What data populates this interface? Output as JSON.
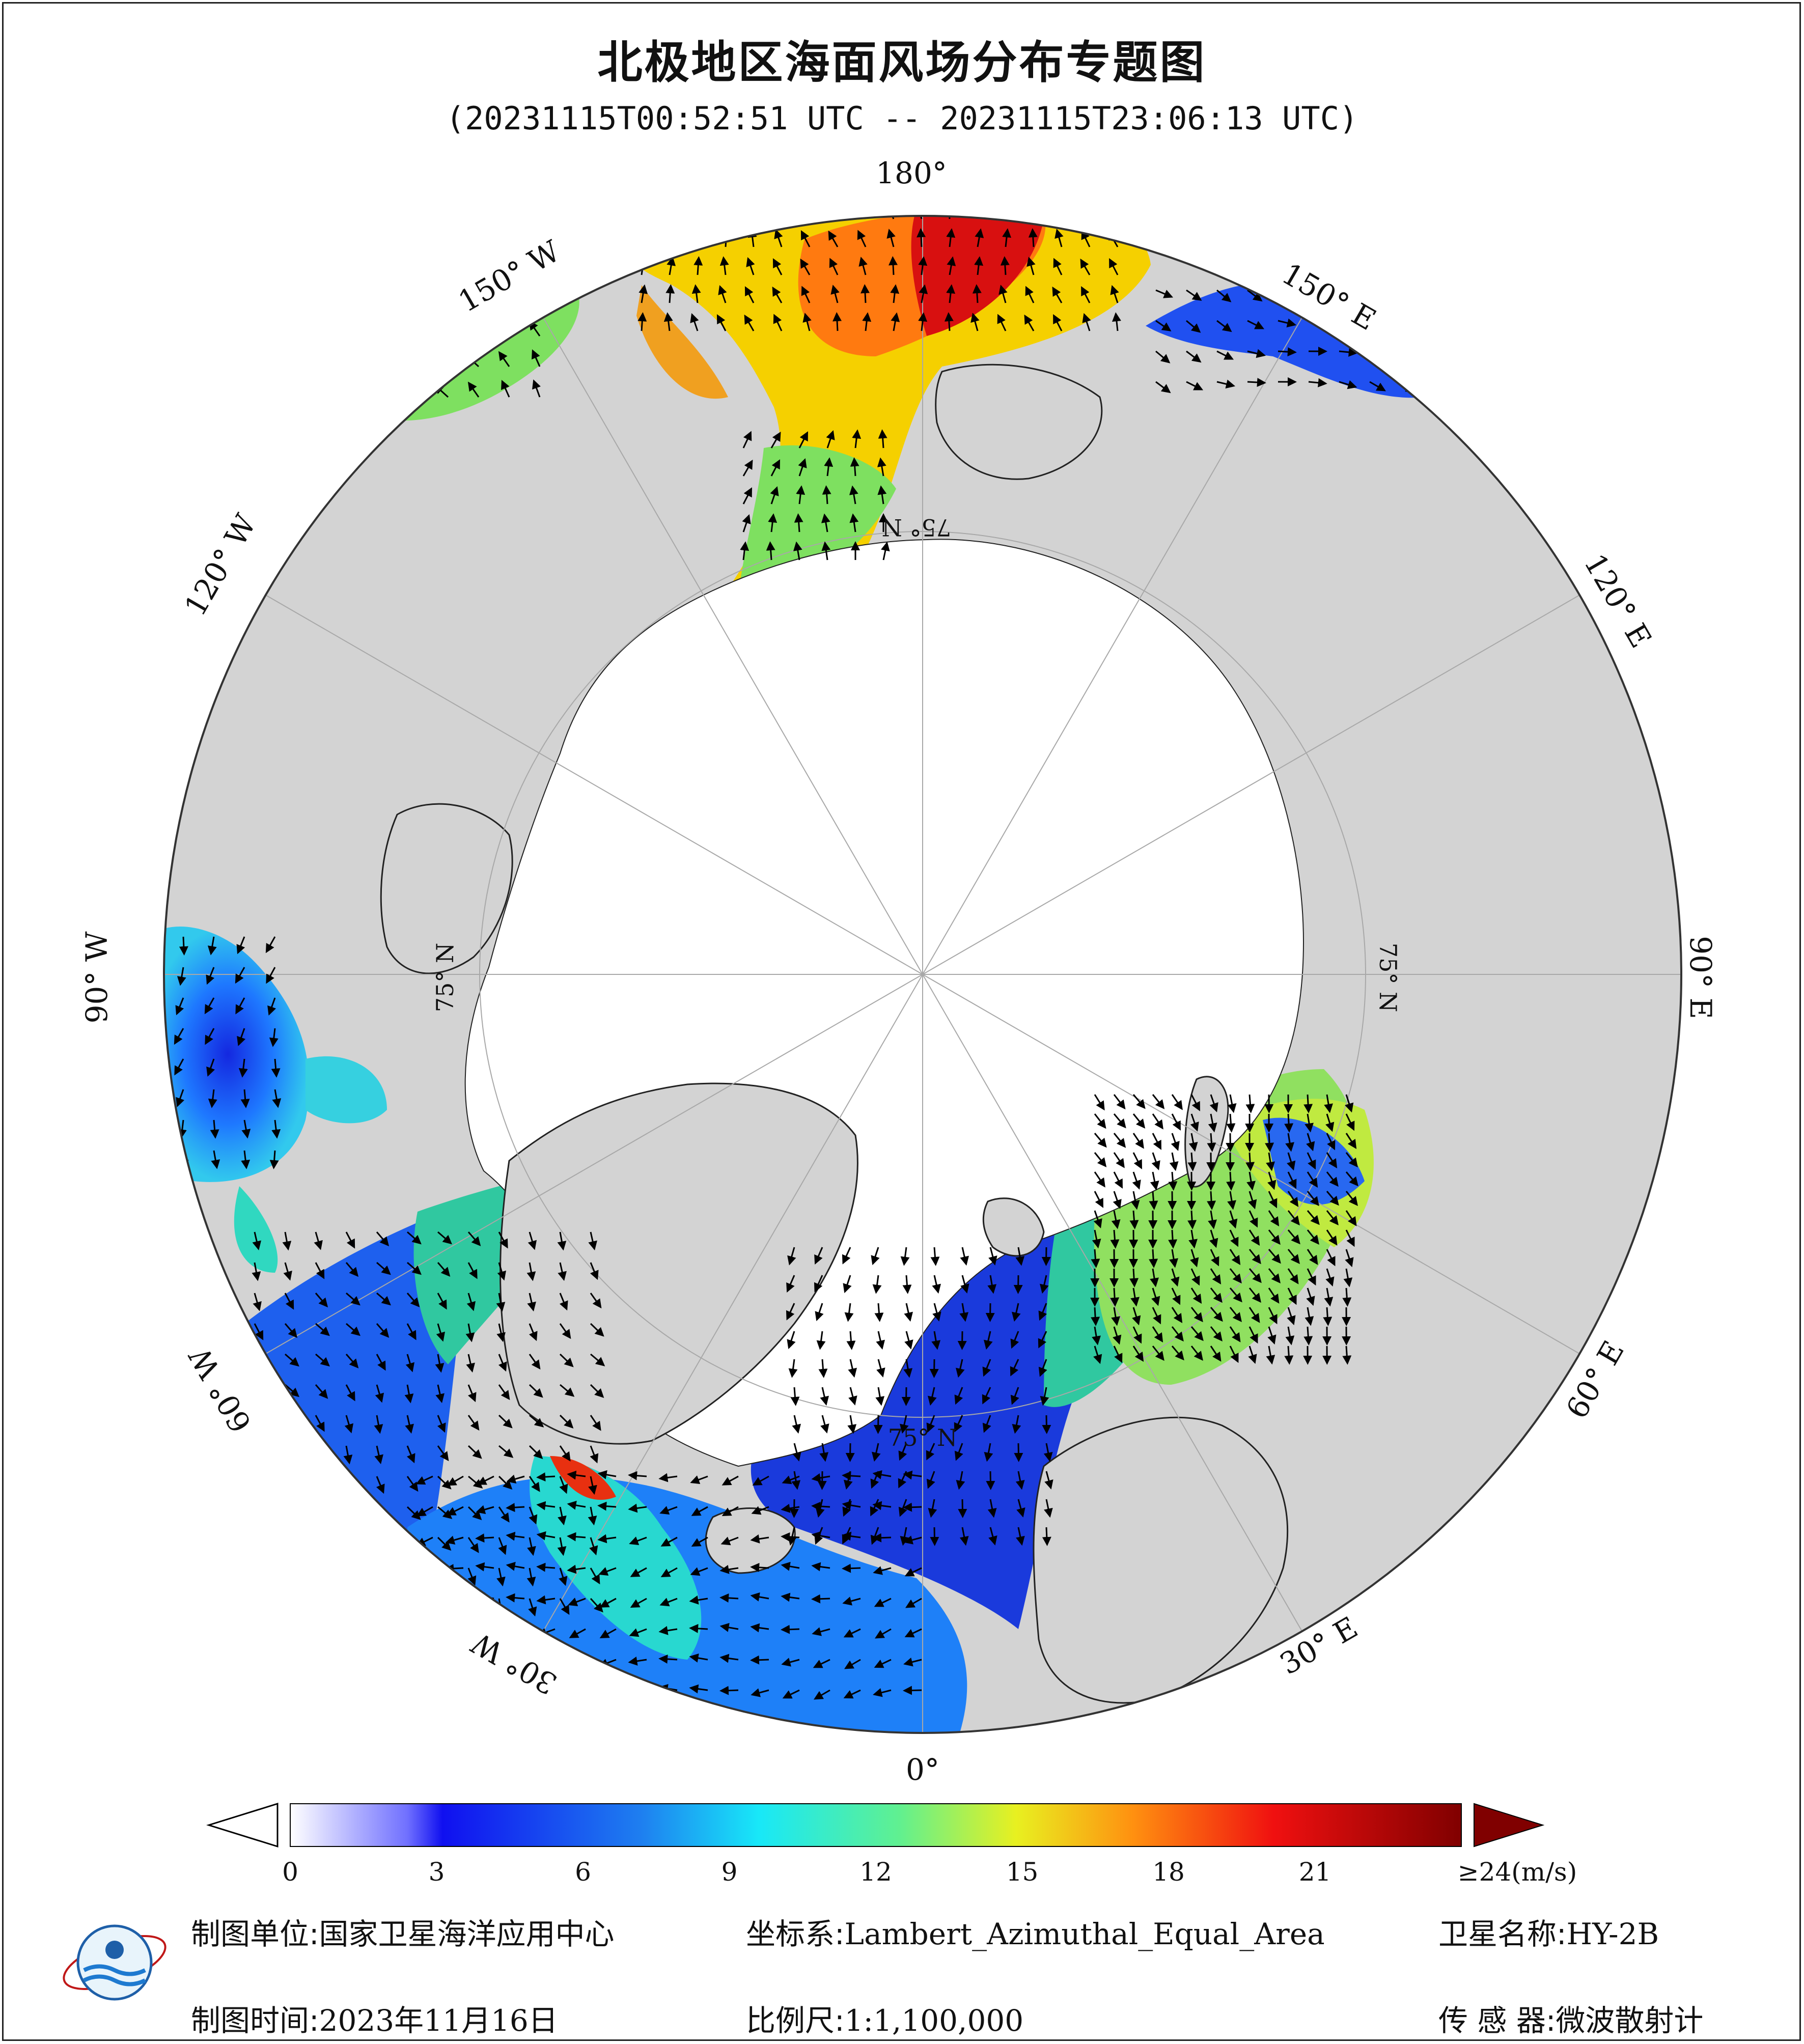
{
  "title": "北极地区海面风场分布专题图",
  "time_range": "(20231115T00:52:51 UTC -- 20231115T23:06:13 UTC)",
  "map": {
    "projection": "Lambert_Azimuthal_Equal_Area",
    "center": "North Pole",
    "longitude_labels": [
      "180°",
      "150° E",
      "120° E",
      "90° E",
      "60° E",
      "30° E",
      "0°",
      "30° W",
      "60° W",
      "90° W",
      "120° W",
      "150° W"
    ],
    "latitude_labels": [
      "75° N",
      "75° N",
      "75° N",
      "75° N"
    ],
    "colors": {
      "land": "#d3d3d3",
      "sea_ice_no_data": "#ffffff",
      "coastline": "#000000",
      "wind_arrow": "#000000"
    }
  },
  "colorbar": {
    "unit": "(m/s)",
    "tick_labels": [
      "0",
      "3",
      "6",
      "9",
      "12",
      "15",
      "18",
      "21",
      "≥24(m/s)"
    ],
    "tick_values": [
      0,
      3,
      6,
      9,
      12,
      15,
      18,
      21,
      24
    ],
    "min": 0,
    "max": 24,
    "under_color": "#ffffff",
    "over_color": "#800000"
  },
  "footer": {
    "unit_label": "制图单位:",
    "unit_value": "国家卫星海洋应用中心",
    "coord_label": "坐标系:",
    "coord_value": "Lambert_Azimuthal_Equal_Area",
    "sat_label": "卫星名称:",
    "sat_value": "HY-2B",
    "date_label": "制图时间:",
    "date_value": "2023年11月16日",
    "scale_label": "比例尺:",
    "scale_value": "1:1,100,000",
    "sensor_label": "传 感 器:",
    "sensor_value": "微波散射计"
  }
}
